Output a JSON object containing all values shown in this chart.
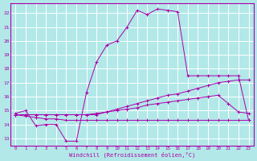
{
  "bg_color": "#b2e8e8",
  "grid_color": "#ffffff",
  "line_color": "#aa00aa",
  "xlabel": "Windchill (Refroidissement éolien,°C)",
  "ylim": [
    12.5,
    22.7
  ],
  "xlim": [
    -0.5,
    23.5
  ],
  "yticks": [
    13,
    14,
    15,
    16,
    17,
    18,
    19,
    20,
    21,
    22
  ],
  "xticks": [
    0,
    1,
    2,
    3,
    4,
    5,
    6,
    7,
    8,
    9,
    10,
    11,
    12,
    13,
    14,
    15,
    16,
    17,
    18,
    19,
    20,
    21,
    22,
    23
  ],
  "line1_x": [
    0,
    1,
    2,
    3,
    4,
    5,
    6,
    7,
    8,
    9,
    10,
    11,
    12,
    13,
    14,
    15,
    16,
    17,
    18,
    19,
    20,
    21,
    22,
    23
  ],
  "line1_y": [
    14.8,
    15.0,
    13.9,
    14.0,
    14.0,
    12.8,
    12.8,
    16.3,
    18.5,
    19.7,
    20.0,
    21.0,
    22.2,
    21.9,
    22.3,
    22.2,
    22.1,
    17.5,
    17.5,
    17.5,
    17.5,
    17.5,
    17.5,
    14.3
  ],
  "line2_x": [
    0,
    1,
    2,
    3,
    4,
    5,
    6,
    7,
    8,
    9,
    10,
    11,
    12,
    13,
    14,
    15,
    16,
    17,
    18,
    19,
    20,
    21,
    22,
    23
  ],
  "line2_y": [
    14.7,
    14.7,
    14.7,
    14.7,
    14.7,
    14.7,
    14.7,
    14.7,
    14.7,
    14.9,
    15.1,
    15.3,
    15.5,
    15.7,
    15.9,
    16.1,
    16.2,
    16.4,
    16.6,
    16.8,
    17.0,
    17.1,
    17.2,
    17.2
  ],
  "line3_x": [
    0,
    1,
    2,
    3,
    4,
    5,
    6,
    7,
    8,
    9,
    10,
    11,
    12,
    13,
    14,
    15,
    16,
    17,
    18,
    19,
    20,
    21,
    22,
    23
  ],
  "line3_y": [
    14.7,
    14.7,
    14.7,
    14.7,
    14.7,
    14.7,
    14.7,
    14.7,
    14.8,
    14.9,
    15.0,
    15.1,
    15.2,
    15.4,
    15.5,
    15.6,
    15.7,
    15.8,
    15.9,
    16.0,
    16.1,
    15.5,
    14.9,
    14.8
  ],
  "line4_x": [
    0,
    1,
    2,
    3,
    4,
    5,
    6,
    7,
    8,
    9,
    10,
    11,
    12,
    13,
    14,
    15,
    16,
    17,
    18,
    19,
    20,
    21,
    22,
    23
  ],
  "line4_y": [
    14.7,
    14.6,
    14.5,
    14.4,
    14.4,
    14.3,
    14.3,
    14.3,
    14.3,
    14.3,
    14.3,
    14.3,
    14.3,
    14.3,
    14.3,
    14.3,
    14.3,
    14.3,
    14.3,
    14.3,
    14.3,
    14.3,
    14.3,
    14.3
  ]
}
